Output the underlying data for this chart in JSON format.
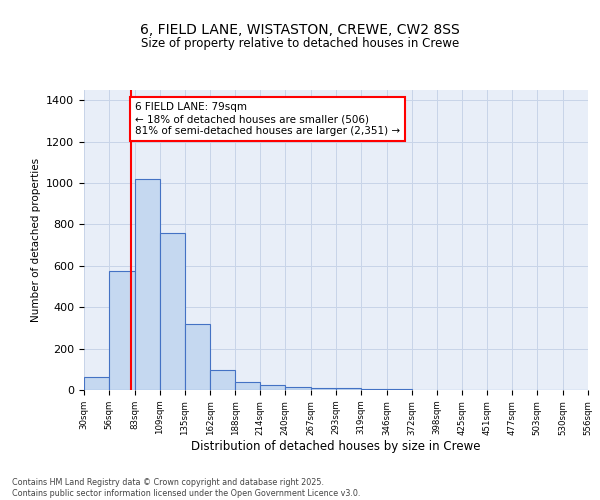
{
  "title_line1": "6, FIELD LANE, WISTASTON, CREWE, CW2 8SS",
  "title_line2": "Size of property relative to detached houses in Crewe",
  "xlabel": "Distribution of detached houses by size in Crewe",
  "ylabel": "Number of detached properties",
  "bar_edges": [
    30,
    56,
    83,
    109,
    135,
    162,
    188,
    214,
    240,
    267,
    293,
    319,
    346,
    372,
    398,
    425,
    451,
    477,
    503,
    530,
    556
  ],
  "bar_heights": [
    65,
    575,
    1020,
    760,
    320,
    95,
    40,
    25,
    15,
    10,
    8,
    5,
    3,
    2,
    2,
    1,
    1,
    1,
    1,
    1
  ],
  "bar_color": "#c5d8f0",
  "bar_edge_color": "#4472c4",
  "bar_linewidth": 0.8,
  "vline_x": 79,
  "vline_color": "red",
  "vline_linewidth": 1.5,
  "annotation_text": "6 FIELD LANE: 79sqm\n← 18% of detached houses are smaller (506)\n81% of semi-detached houses are larger (2,351) →",
  "annotation_box_color": "red",
  "annotation_fontsize": 7.5,
  "ylim": [
    0,
    1450
  ],
  "yticks": [
    0,
    200,
    400,
    600,
    800,
    1000,
    1200,
    1400
  ],
  "grid_color": "#c8d4e8",
  "background_color": "#e8eef8",
  "footer_text": "Contains HM Land Registry data © Crown copyright and database right 2025.\nContains public sector information licensed under the Open Government Licence v3.0.",
  "tick_labels": [
    "30sqm",
    "56sqm",
    "83sqm",
    "109sqm",
    "135sqm",
    "162sqm",
    "188sqm",
    "214sqm",
    "240sqm",
    "267sqm",
    "293sqm",
    "319sqm",
    "346sqm",
    "372sqm",
    "398sqm",
    "425sqm",
    "451sqm",
    "477sqm",
    "503sqm",
    "530sqm",
    "556sqm"
  ]
}
